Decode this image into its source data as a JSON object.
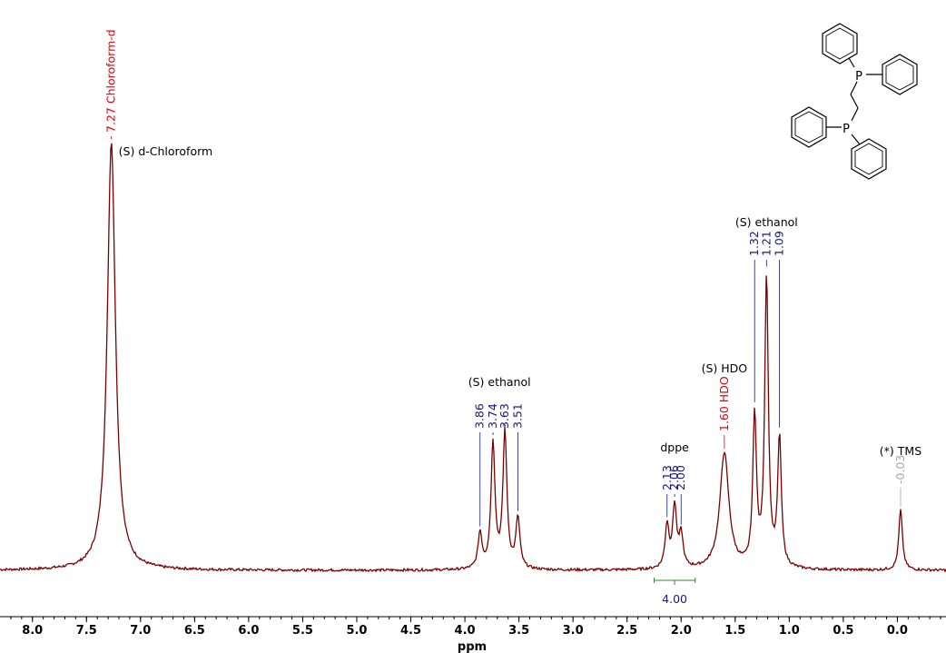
{
  "chart_data": {
    "type": "line",
    "xlabel": "ppm",
    "x_reversed": true,
    "xlim": [
      8.3,
      -0.45
    ],
    "x_ticks": [
      "8.0",
      "7.5",
      "7.0",
      "6.5",
      "6.0",
      "5.5",
      "5.0",
      "4.5",
      "4.0",
      "3.5",
      "3.0",
      "2.5",
      "2.0",
      "1.5",
      "1.0",
      "0.5",
      "0.0"
    ],
    "x_tick_values": [
      8.0,
      7.5,
      7.0,
      6.5,
      6.0,
      5.5,
      5.0,
      4.5,
      4.0,
      3.5,
      3.0,
      2.5,
      2.0,
      1.5,
      1.0,
      0.5,
      0.0
    ],
    "ylim": [
      0,
      1.0
    ],
    "series_color": "#7a0000",
    "peaks": [
      {
        "ppm": 7.27,
        "height": 1.0,
        "width": 0.045
      },
      {
        "ppm": 3.86,
        "height": 0.083,
        "width": 0.022
      },
      {
        "ppm": 3.74,
        "height": 0.293,
        "width": 0.022
      },
      {
        "ppm": 3.63,
        "height": 0.318,
        "width": 0.022
      },
      {
        "ppm": 3.51,
        "height": 0.118,
        "width": 0.022
      },
      {
        "ppm": 2.13,
        "height": 0.1,
        "width": 0.022
      },
      {
        "ppm": 2.06,
        "height": 0.143,
        "width": 0.022
      },
      {
        "ppm": 2.0,
        "height": 0.075,
        "width": 0.022
      },
      {
        "ppm": 1.6,
        "height": 0.272,
        "width": 0.05
      },
      {
        "ppm": 1.32,
        "height": 0.353,
        "width": 0.02
      },
      {
        "ppm": 1.21,
        "height": 0.678,
        "width": 0.02
      },
      {
        "ppm": 1.09,
        "height": 0.303,
        "width": 0.02
      },
      {
        "ppm": -0.03,
        "height": 0.141,
        "width": 0.02
      }
    ],
    "peak_labels": [
      {
        "text": "7.27 Chloroform-d",
        "ppm": 7.27,
        "color": "#e8000b"
      },
      {
        "text": "3.86",
        "ppm": 3.86,
        "color": "#1a1a80"
      },
      {
        "text": "3.74",
        "ppm": 3.74,
        "color": "#1a1a80"
      },
      {
        "text": "3.63",
        "ppm": 3.63,
        "color": "#1a1a80"
      },
      {
        "text": "3.51",
        "ppm": 3.51,
        "color": "#1a1a80"
      },
      {
        "text": "2.13",
        "ppm": 2.13,
        "color": "#1a1a80"
      },
      {
        "text": "2.06",
        "ppm": 2.06,
        "color": "#1a1a80"
      },
      {
        "text": "2.00",
        "ppm": 2.0,
        "color": "#1a1a80"
      },
      {
        "text": "1.60 HDO",
        "ppm": 1.6,
        "color": "#e8000b"
      },
      {
        "text": "1.32",
        "ppm": 1.32,
        "color": "#1a1a80"
      },
      {
        "text": "1.21",
        "ppm": 1.21,
        "color": "#1a1a80"
      },
      {
        "text": "1.09",
        "ppm": 1.09,
        "color": "#1a1a80"
      },
      {
        "text": "-0.03",
        "ppm": -0.03,
        "color": "#a6a6a6"
      }
    ],
    "group_labels": [
      {
        "text": "(S) d-Chloroform",
        "ppm": 7.27
      },
      {
        "text": "(S) ethanol",
        "ppm": 3.68
      },
      {
        "text": "dppe",
        "ppm": 2.06
      },
      {
        "text": "(S) HDO",
        "ppm": 1.6
      },
      {
        "text": "(S) ethanol",
        "ppm": 1.21
      },
      {
        "text": "(*) TMS",
        "ppm": -0.03
      }
    ],
    "integrals": [
      {
        "from": 2.25,
        "to": 1.87,
        "value": "4.00",
        "color": "#2e8b2e",
        "label_color": "#1a1a80"
      }
    ]
  },
  "structure": {
    "name": "dppe",
    "atom_labels": [
      "P",
      "P"
    ]
  }
}
